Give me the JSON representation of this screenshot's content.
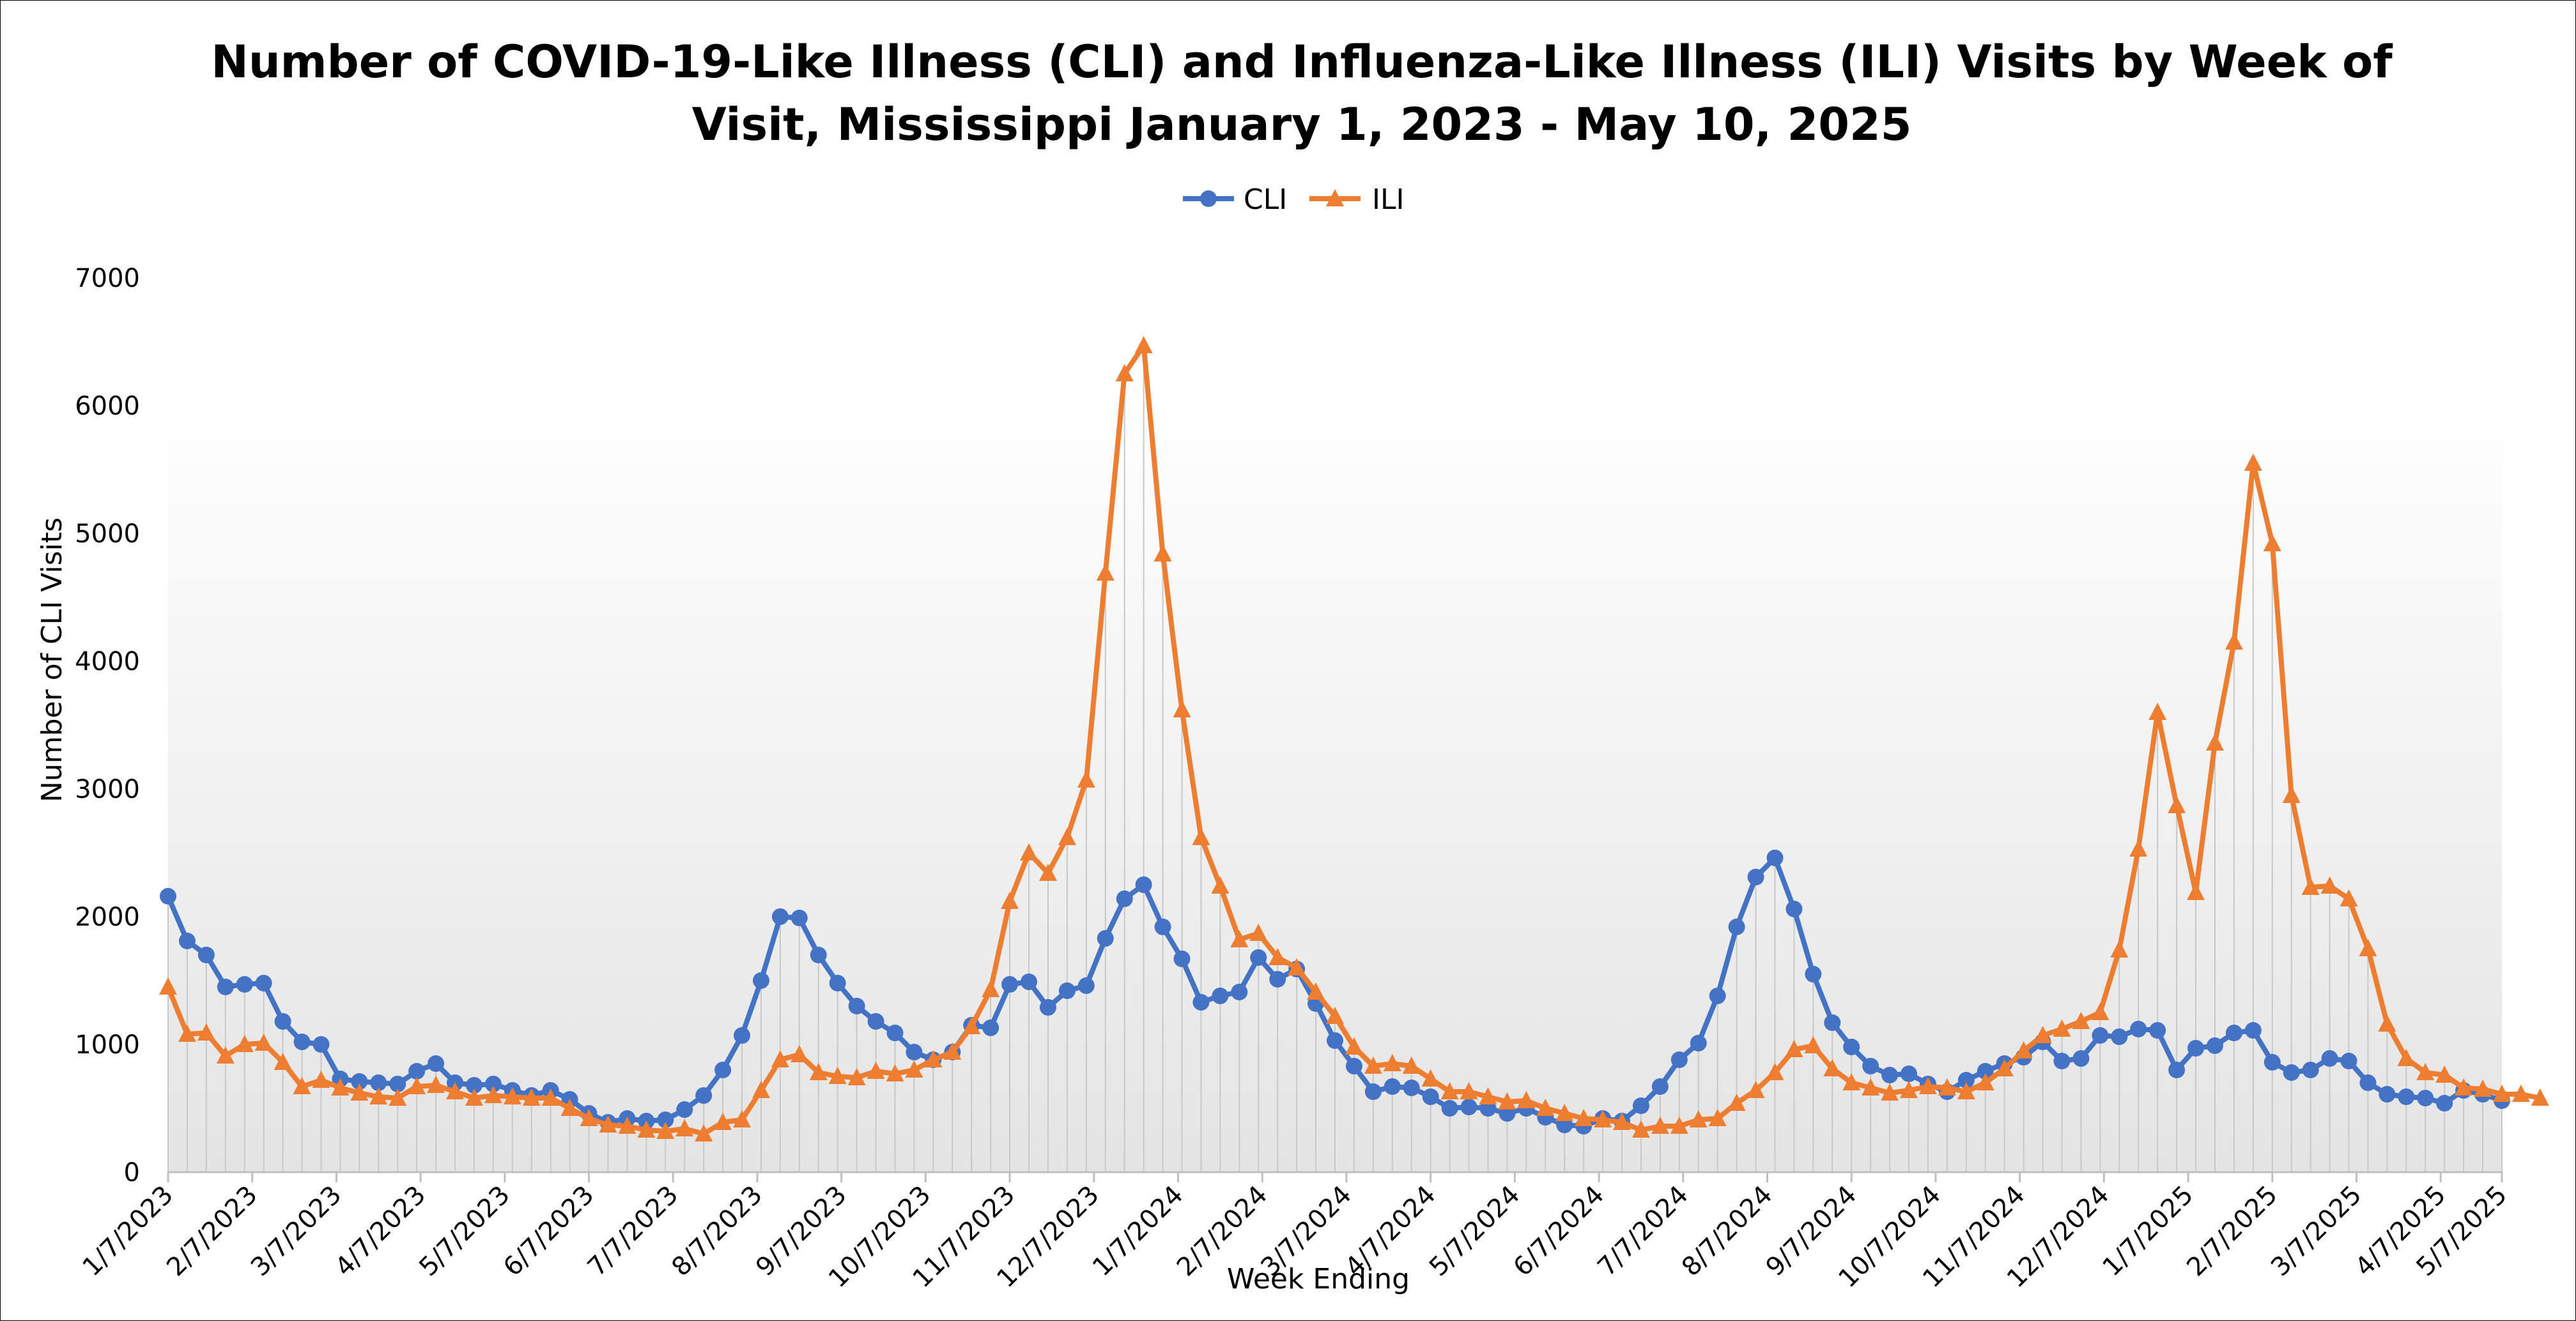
{
  "chart_data": {
    "type": "line",
    "title_lines": [
      "Number of COVID-19-Like Illness (CLI) and Influenza-Like Illness (ILI) Visits by Week of",
      "Visit, Mississippi January 1, 2023 - May 10, 2025"
    ],
    "xlabel": "Week Ending",
    "ylabel": "Number of CLI Visits",
    "ylim": [
      0,
      7000
    ],
    "yticks": [
      "0",
      "1000",
      "2000",
      "3000",
      "4000",
      "5000",
      "6000",
      "7000"
    ],
    "xtick_labels": [
      "1/7/2023",
      "2/7/2023",
      "3/7/2023",
      "4/7/2023",
      "5/7/2023",
      "6/7/2023",
      "7/7/2023",
      "8/7/2023",
      "9/7/2023",
      "10/7/2023",
      "11/7/2023",
      "12/7/2023",
      "1/7/2024",
      "2/7/2024",
      "3/7/2024",
      "4/7/2024",
      "5/7/2024",
      "6/7/2024",
      "7/7/2024",
      "8/7/2024",
      "9/7/2024",
      "10/7/2024",
      "11/7/2024",
      "12/7/2024",
      "1/7/2025",
      "2/7/2025",
      "3/7/2025",
      "4/7/2025",
      "5/7/2025"
    ],
    "legend_position": "top-center",
    "grid": false,
    "week_count": 123,
    "series": [
      {
        "name": "CLI",
        "color": "#4472C4",
        "marker": "circle",
        "values": [
          2160,
          1810,
          1700,
          1450,
          1470,
          1480,
          1180,
          1020,
          1000,
          730,
          710,
          700,
          690,
          790,
          850,
          700,
          680,
          690,
          640,
          600,
          640,
          570,
          460,
          390,
          420,
          400,
          410,
          490,
          600,
          800,
          1070,
          1500,
          2000,
          1990,
          1700,
          1480,
          1300,
          1180,
          1090,
          940,
          880,
          940,
          1150,
          1130,
          1470,
          1490,
          1290,
          1420,
          1460,
          1830,
          2140,
          2250,
          1920,
          1670,
          1330,
          1380,
          1410,
          1680,
          1510,
          1590,
          1320,
          1030,
          830,
          630,
          670,
          660,
          590,
          500,
          510,
          500,
          460,
          500,
          430,
          370,
          360,
          420,
          400,
          520,
          670,
          880,
          1010,
          1380,
          1920,
          2310,
          2460,
          2060,
          1550,
          1170,
          980,
          830,
          760,
          770,
          690,
          630,
          720,
          790,
          850,
          900,
          1020,
          870,
          890,
          1070,
          1060,
          1120,
          1110,
          800,
          970,
          990,
          1090,
          1110,
          860,
          780,
          800,
          890,
          870,
          700,
          610,
          590,
          580,
          540,
          640,
          610,
          560
        ]
      },
      {
        "name": "ILI",
        "color": "#ED7D31",
        "marker": "triangle",
        "values": [
          1450,
          1080,
          1090,
          910,
          1000,
          1010,
          860,
          670,
          720,
          660,
          620,
          590,
          580,
          670,
          680,
          630,
          580,
          600,
          590,
          580,
          580,
          500,
          420,
          370,
          360,
          330,
          320,
          340,
          300,
          390,
          410,
          640,
          880,
          920,
          780,
          750,
          740,
          790,
          770,
          800,
          880,
          940,
          1140,
          1430,
          2120,
          2500,
          2340,
          2620,
          3070,
          4690,
          6250,
          6470,
          4840,
          3620,
          2620,
          2240,
          1820,
          1870,
          1680,
          1600,
          1410,
          1220,
          980,
          830,
          850,
          830,
          730,
          630,
          630,
          590,
          550,
          560,
          500,
          460,
          420,
          410,
          390,
          330,
          360,
          360,
          410,
          420,
          540,
          640,
          780,
          960,
          990,
          810,
          700,
          660,
          620,
          640,
          670,
          660,
          630,
          700,
          810,
          950,
          1070,
          1120,
          1180,
          1250,
          1740,
          2530,
          3600,
          2870,
          2190,
          3360,
          4150,
          5550,
          4920,
          2950,
          2230,
          2240,
          2140,
          1750,
          1160,
          890,
          780,
          760,
          660,
          650,
          610,
          610,
          580
        ]
      }
    ]
  }
}
